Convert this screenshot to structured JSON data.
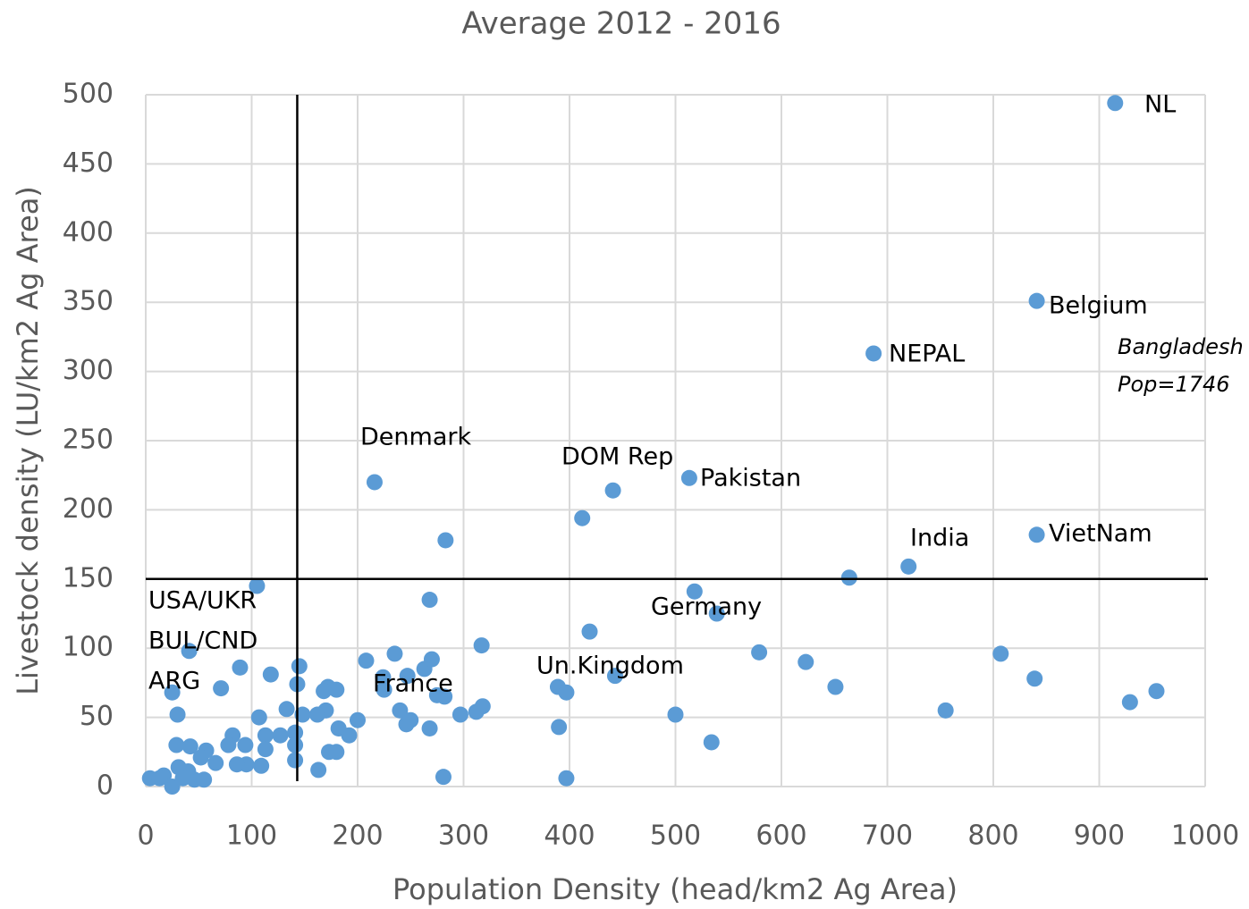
{
  "chart_data": {
    "type": "scatter",
    "title": "Average 2012 - 2016",
    "x_label": "Population Density (head/km2 Ag Area)",
    "y_label": "Livestock density (LU/km2 Ag Area)",
    "color": "#5b9bd5",
    "xlim": [
      0,
      1000
    ],
    "xticks": [
      0,
      100,
      200,
      300,
      400,
      500,
      600,
      700,
      800,
      900,
      1000
    ],
    "ylim": [
      0,
      500
    ],
    "yticks": [
      0,
      50,
      100,
      150,
      200,
      250,
      300,
      350,
      400,
      450,
      500
    ],
    "grid": true,
    "reference_lines": {
      "x": 143,
      "y": 150
    },
    "x": [
      915,
      841,
      687,
      513,
      441,
      412,
      216,
      283,
      720,
      664,
      841,
      105,
      268,
      518,
      539,
      419,
      317,
      579,
      807,
      623,
      839,
      651,
      954,
      929,
      755,
      500,
      534,
      390,
      397,
      281,
      443,
      389,
      397,
      41,
      89,
      118,
      71,
      25,
      30,
      145,
      143,
      208,
      235,
      224,
      247,
      263,
      270,
      172,
      168,
      180,
      225,
      240,
      246,
      250,
      268,
      275,
      282,
      297,
      312,
      318,
      200,
      182,
      192,
      170,
      162,
      148,
      133,
      127,
      107,
      113,
      113,
      109,
      94,
      95,
      86,
      82,
      78,
      141,
      141,
      141,
      173,
      180,
      163,
      29,
      42,
      57,
      66,
      52,
      31,
      40,
      46,
      55,
      25,
      17,
      4,
      13,
      35
    ],
    "values": [
      494,
      351,
      313,
      223,
      214,
      194,
      220,
      178,
      159,
      151,
      182,
      145,
      135,
      141,
      125,
      112,
      102,
      97,
      96,
      90,
      78,
      72,
      69,
      61,
      55,
      52,
      32,
      43,
      6,
      7,
      80,
      72,
      68,
      98,
      86,
      81,
      71,
      68,
      52,
      87,
      74,
      91,
      96,
      79,
      80,
      85,
      92,
      72,
      69,
      70,
      70,
      55,
      45,
      48,
      42,
      66,
      65,
      52,
      54,
      58,
      48,
      42,
      37,
      55,
      52,
      52,
      56,
      37,
      50,
      37,
      27,
      15,
      30,
      16,
      16,
      37,
      30,
      39,
      30,
      19,
      25,
      25,
      12,
      30,
      29,
      26,
      17,
      21,
      14,
      11,
      5,
      5,
      0,
      8,
      6,
      6,
      6
    ],
    "annotations": [
      "NL",
      "Belgium",
      "NEPAL",
      "Pakistan",
      "DOM Rep",
      "Denmark",
      "India",
      "VietNam",
      "Germany",
      "Un.Kingdom",
      "France",
      "USA/UKR",
      "BUL/CND",
      "ARG",
      "Bangladesh",
      "Pop=1746"
    ]
  }
}
